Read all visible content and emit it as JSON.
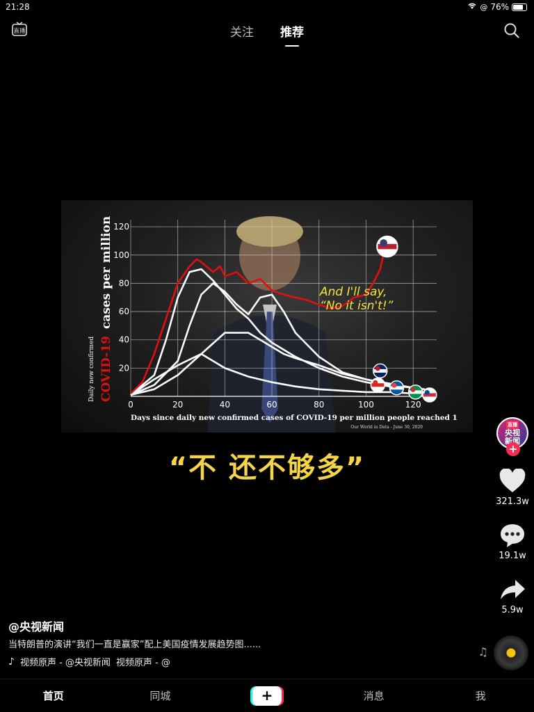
{
  "status": {
    "time": "21:28",
    "battery": "76%",
    "battery_level": 0.76
  },
  "topnav": {
    "live_label": "直播",
    "tabs": [
      {
        "label": "关注"
      },
      {
        "label": "推荐"
      }
    ]
  },
  "video": {
    "subtitle": "“不 还不够多”",
    "quote_line1": "And I'll say,",
    "quote_line2": "“No it isn't!”",
    "chart_data": {
      "type": "line",
      "ylabel_small": "Daily new confirmed",
      "ylabel_big_red": "COVID-19",
      "ylabel_big": "cases per million",
      "xlabel": "Days since daily new confirmed cases of COVID-19 per million people reached 1",
      "source": "Our World in Data - June 30, 2020",
      "x_ticks": [
        "0",
        "20",
        "40",
        "60",
        "80",
        "100",
        "120"
      ],
      "y_ticks": [
        "20",
        "40",
        "60",
        "80",
        "100",
        "120"
      ],
      "xlim": [
        0,
        130
      ],
      "ylim": [
        0,
        125
      ],
      "series": [
        {
          "color": "#e01010",
          "x": [
            0,
            5,
            10,
            15,
            20,
            25,
            28,
            30,
            35,
            38,
            40,
            45,
            50,
            55,
            60,
            65,
            70,
            75,
            80,
            85,
            90,
            95,
            100,
            103,
            106,
            108,
            110
          ],
          "y": [
            2,
            10,
            30,
            55,
            80,
            92,
            97,
            95,
            88,
            92,
            85,
            88,
            80,
            83,
            75,
            72,
            70,
            68,
            65,
            62,
            64,
            70,
            72,
            80,
            90,
            105,
            110
          ]
        },
        {
          "color": "#ffffff",
          "x": [
            0,
            10,
            15,
            20,
            25,
            30,
            35,
            40,
            45,
            50,
            55,
            60,
            70,
            80,
            90,
            100,
            110
          ],
          "y": [
            1,
            15,
            40,
            70,
            88,
            90,
            82,
            72,
            62,
            55,
            45,
            38,
            28,
            20,
            14,
            10,
            7
          ]
        },
        {
          "color": "#ffffff",
          "x": [
            0,
            10,
            20,
            25,
            30,
            35,
            40,
            45,
            50,
            55,
            60,
            65,
            70,
            80,
            90,
            100,
            110,
            120
          ],
          "y": [
            1,
            8,
            25,
            50,
            72,
            80,
            74,
            65,
            58,
            70,
            72,
            60,
            45,
            28,
            17,
            12,
            9,
            6
          ]
        },
        {
          "color": "#ffffff",
          "x": [
            0,
            10,
            20,
            30,
            40,
            50,
            55,
            60,
            65,
            70,
            80,
            90,
            100,
            110,
            120,
            125
          ],
          "y": [
            1,
            5,
            15,
            30,
            45,
            45,
            40,
            35,
            30,
            27,
            22,
            16,
            12,
            8,
            6,
            5
          ]
        },
        {
          "color": "#ffffff",
          "x": [
            0,
            10,
            20,
            30,
            40,
            50,
            60,
            70,
            80,
            90,
            100,
            110,
            120
          ],
          "y": [
            1,
            12,
            22,
            30,
            20,
            14,
            10,
            7,
            5,
            4,
            3,
            3,
            2
          ]
        }
      ],
      "flags": [
        {
          "name": "us-flag-icon",
          "x": 109,
          "y": 106
        },
        {
          "name": "uk-flag-icon",
          "x": 106,
          "y": 18
        },
        {
          "name": "canada-flag-icon",
          "x": 105,
          "y": 8
        },
        {
          "name": "france-flag-icon",
          "x": 113,
          "y": 6
        },
        {
          "name": "italy-flag-icon",
          "x": 121,
          "y": 3
        },
        {
          "name": "korea-flag-icon",
          "x": 127,
          "y": 1
        }
      ]
    }
  },
  "rail": {
    "avatar_text_top": "央视",
    "avatar_text_bottom": "新闻",
    "avatar_badge": "直播",
    "likes": "321.3w",
    "comments": "19.1w",
    "shares": "5.9w"
  },
  "caption": {
    "author": "@央视新闻",
    "description": "当特朗普的演讲“我们一直是赢家”配上美国疫情发展趋势图......",
    "music": "视频原声 - @央视新闻",
    "music2": "视频原声 - @"
  },
  "bottombar": {
    "items": [
      {
        "label": "首页"
      },
      {
        "label": "同城"
      },
      {
        "label": "+"
      },
      {
        "label": "消息"
      },
      {
        "label": "我"
      }
    ]
  }
}
